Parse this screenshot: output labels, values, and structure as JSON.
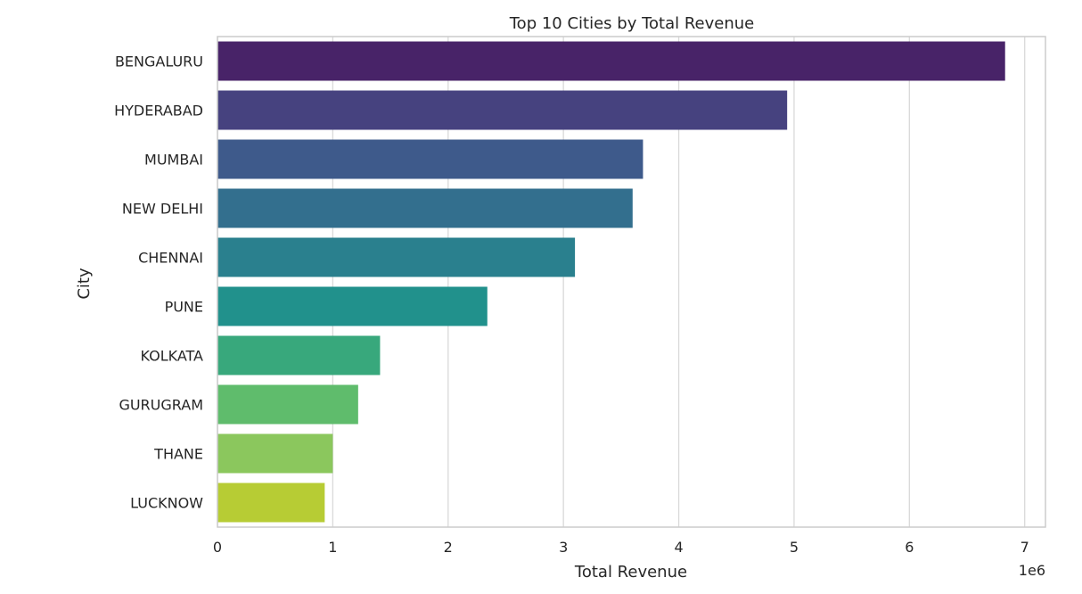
{
  "chart_data": {
    "type": "bar",
    "orientation": "horizontal",
    "title": "Top 10 Cities by Total Revenue",
    "xlabel": "Total Revenue",
    "ylabel": "City",
    "x_offset_text": "1e6",
    "categories": [
      "BENGALURU",
      "HYDERABAD",
      "MUMBAI",
      "NEW DELHI",
      "CHENNAI",
      "PUNE",
      "KOLKATA",
      "GURUGRAM",
      "THANE",
      "LUCKNOW"
    ],
    "values": [
      6830000,
      4940000,
      3690000,
      3600000,
      3100000,
      2340000,
      1410000,
      1220000,
      1000000,
      930000
    ],
    "xlim": [
      0,
      7180000
    ],
    "xticks": [
      0,
      1000000,
      2000000,
      3000000,
      4000000,
      5000000,
      6000000,
      7000000
    ],
    "xtick_labels": [
      "0",
      "1",
      "2",
      "3",
      "4",
      "5",
      "6",
      "7"
    ],
    "grid": "x",
    "legend": "none",
    "palette": "viridis",
    "colors": [
      "#482368",
      "#46427f",
      "#3e5a8b",
      "#336f8e",
      "#2a808e",
      "#21918c",
      "#38a87c",
      "#5fbc6c",
      "#8bc75d",
      "#b7cc34"
    ]
  }
}
